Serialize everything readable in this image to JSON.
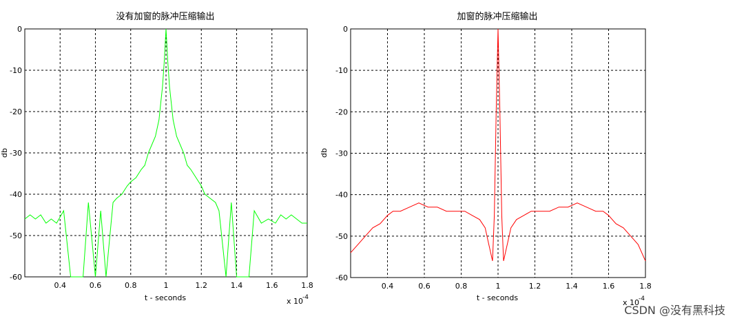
{
  "watermark": "CSDN @没有黑科技",
  "chart_data": [
    {
      "type": "line",
      "title": "没有加窗的脉冲压缩输出",
      "xlabel": "t - seconds",
      "ylabel": "db",
      "x_multiplier": "x 10",
      "x_exponent": "-4",
      "xlim": [
        0.2,
        1.8
      ],
      "ylim": [
        -60,
        0
      ],
      "xticks": [
        "0.4",
        "0.6",
        "0.8",
        "1",
        "1.2",
        "1.4",
        "1.6",
        "1.8"
      ],
      "xtick_values": [
        0.4,
        0.6,
        0.8,
        1.0,
        1.2,
        1.4,
        1.6,
        1.8
      ],
      "yticks": [
        "0",
        "-10",
        "-20",
        "-30",
        "-40",
        "-50",
        "-60"
      ],
      "ytick_values": [
        0,
        -10,
        -20,
        -30,
        -40,
        -50,
        -60
      ],
      "grid": true,
      "color": "#00ff00",
      "series": [
        {
          "x": [
            0.2,
            0.23,
            0.26,
            0.29,
            0.32,
            0.35,
            0.38,
            0.42,
            0.46,
            0.5,
            0.53,
            0.56,
            0.6,
            0.63,
            0.66,
            0.7,
            0.72,
            0.75,
            0.78,
            0.8,
            0.83,
            0.86,
            0.88,
            0.9,
            0.92,
            0.94,
            0.96,
            0.97,
            0.98,
            0.99,
            1.0,
            1.01,
            1.02,
            1.03,
            1.04,
            1.06,
            1.08,
            1.1,
            1.12,
            1.14,
            1.17,
            1.2,
            1.22,
            1.25,
            1.28,
            1.3,
            1.34,
            1.37,
            1.4,
            1.44,
            1.47,
            1.5,
            1.54,
            1.58,
            1.62,
            1.65,
            1.68,
            1.71,
            1.74,
            1.77,
            1.8
          ],
          "y": [
            -46,
            -45,
            -46,
            -45,
            -47,
            -46,
            -47,
            -44,
            -60,
            -60,
            -60,
            -42,
            -60,
            -44,
            -60,
            -42,
            -41,
            -40,
            -38,
            -37,
            -36,
            -34,
            -33,
            -30,
            -28,
            -26,
            -22,
            -18,
            -14,
            -8,
            0,
            -8,
            -14,
            -18,
            -22,
            -26,
            -28,
            -30,
            -33,
            -34,
            -36,
            -38,
            -40,
            -41,
            -42,
            -44,
            -60,
            -42,
            -60,
            -60,
            -60,
            -44,
            -47,
            -46,
            -47,
            -45,
            -46,
            -45,
            -46,
            -47,
            -47
          ]
        }
      ]
    },
    {
      "type": "line",
      "title": "加窗的脉冲压缩输出",
      "xlabel": "t - seconds",
      "ylabel": "db",
      "x_multiplier": "x 10",
      "x_exponent": "-4",
      "xlim": [
        0.2,
        1.8
      ],
      "ylim": [
        -60,
        0
      ],
      "xticks": [
        "0.4",
        "0.6",
        "0.8",
        "1",
        "1.2",
        "1.4",
        "1.6",
        "1.8"
      ],
      "xtick_values": [
        0.4,
        0.6,
        0.8,
        1.0,
        1.2,
        1.4,
        1.6,
        1.8
      ],
      "yticks": [
        "0",
        "-10",
        "-20",
        "-30",
        "-40",
        "-50",
        "-60"
      ],
      "ytick_values": [
        0,
        -10,
        -20,
        -30,
        -40,
        -50,
        -60
      ],
      "grid": true,
      "color": "#ff0000",
      "series": [
        {
          "x": [
            0.2,
            0.24,
            0.28,
            0.32,
            0.36,
            0.4,
            0.43,
            0.47,
            0.52,
            0.57,
            0.62,
            0.67,
            0.72,
            0.77,
            0.82,
            0.86,
            0.9,
            0.93,
            0.95,
            0.97,
            0.98,
            0.99,
            1.0,
            1.01,
            1.02,
            1.03,
            1.05,
            1.07,
            1.1,
            1.14,
            1.18,
            1.23,
            1.28,
            1.33,
            1.38,
            1.43,
            1.48,
            1.53,
            1.57,
            1.6,
            1.64,
            1.68,
            1.72,
            1.76,
            1.8
          ],
          "y": [
            -54,
            -52,
            -50,
            -48,
            -47,
            -45,
            -44,
            -44,
            -43,
            -42,
            -43,
            -43,
            -44,
            -44,
            -44,
            -45,
            -46,
            -48,
            -52,
            -56,
            -45,
            -20,
            0,
            -20,
            -45,
            -56,
            -52,
            -48,
            -46,
            -45,
            -44,
            -44,
            -44,
            -43,
            -43,
            -42,
            -43,
            -44,
            -44,
            -45,
            -47,
            -48,
            -50,
            -52,
            -56
          ]
        }
      ]
    }
  ]
}
